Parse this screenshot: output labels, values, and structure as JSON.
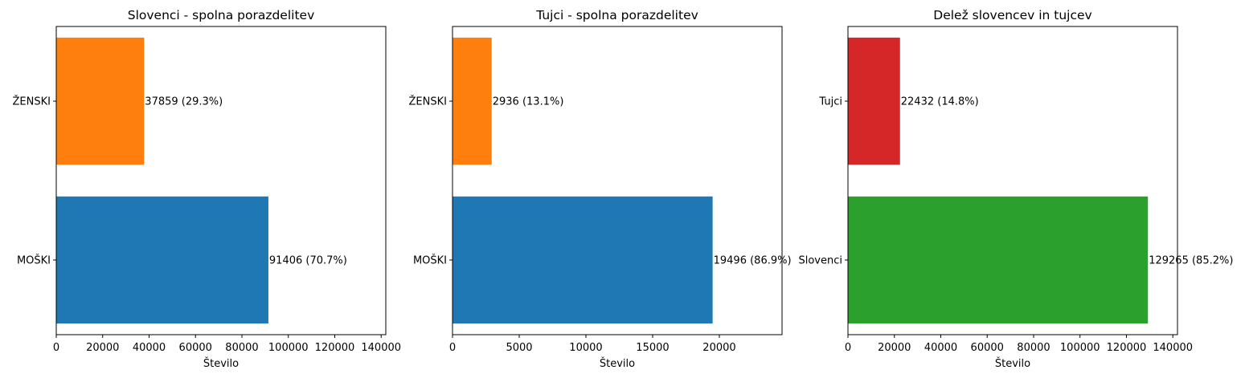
{
  "chart_data": [
    {
      "type": "bar",
      "orientation": "horizontal",
      "title": "Slovenci - spolna porazdelitev",
      "xlabel": "Število",
      "ylabel": "",
      "categories": [
        "MOŠKI",
        "ŽENSKI"
      ],
      "values": [
        91406,
        37859
      ],
      "labels": [
        "91406 (70.7%)",
        "37859 (29.3%)"
      ],
      "colors": [
        "#1f77b4",
        "#ff7f0e"
      ],
      "xlim": [
        0,
        142000
      ],
      "xticks": [
        0,
        20000,
        40000,
        60000,
        80000,
        100000,
        120000,
        140000
      ],
      "grid": false
    },
    {
      "type": "bar",
      "orientation": "horizontal",
      "title": "Tujci - spolna porazdelitev",
      "xlabel": "Število",
      "ylabel": "",
      "categories": [
        "MOŠKI",
        "ŽENSKI"
      ],
      "values": [
        19496,
        2936
      ],
      "labels": [
        "19496 (86.9%)",
        "2936 (13.1%)"
      ],
      "colors": [
        "#1f77b4",
        "#ff7f0e"
      ],
      "xlim": [
        0,
        24700
      ],
      "xticks": [
        0,
        5000,
        10000,
        15000,
        20000
      ],
      "grid": false
    },
    {
      "type": "bar",
      "orientation": "horizontal",
      "title": "Delež slovencev in tujcev",
      "xlabel": "Število",
      "ylabel": "",
      "categories": [
        "Slovenci",
        "Tujci"
      ],
      "values": [
        129265,
        22432
      ],
      "labels": [
        "129265 (85.2%)",
        "22432 (14.8%)"
      ],
      "colors": [
        "#2ca02c",
        "#d62728"
      ],
      "xlim": [
        0,
        142000
      ],
      "xticks": [
        0,
        20000,
        40000,
        60000,
        80000,
        100000,
        120000,
        140000
      ],
      "grid": false
    }
  ]
}
